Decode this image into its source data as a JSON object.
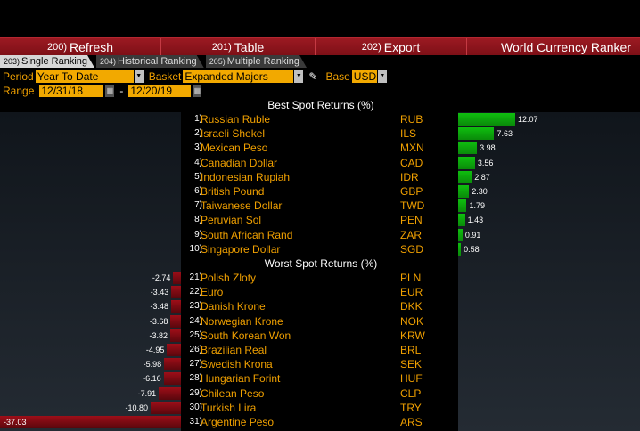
{
  "menu": [
    {
      "num": "200)",
      "label": "Refresh"
    },
    {
      "num": "201)",
      "label": "Table"
    },
    {
      "num": "202)",
      "label": "Export"
    }
  ],
  "app_title": "World Currency Ranker",
  "tabs": [
    {
      "num": "203)",
      "label": "Single Ranking",
      "active": true
    },
    {
      "num": "204)",
      "label": "Historical Ranking",
      "active": false
    },
    {
      "num": "205)",
      "label": "Multiple Ranking",
      "active": false
    }
  ],
  "params": {
    "period_label": "Period",
    "period_value": "Year To Date",
    "basket_label": "Basket",
    "basket_value": "Expanded Majors",
    "base_label": "Base",
    "base_value": "USD",
    "range_label": "Range",
    "range_start": "12/31/18",
    "range_sep": "-",
    "range_end": "12/20/19"
  },
  "best_title": "Best Spot Returns (%)",
  "worst_title": "Worst Spot Returns (%)",
  "best": [
    {
      "rank": "1)",
      "name": "Russian Ruble",
      "code": "RUB",
      "value": "12.07"
    },
    {
      "rank": "2)",
      "name": "Israeli Shekel",
      "code": "ILS",
      "value": "7.63"
    },
    {
      "rank": "3)",
      "name": "Mexican Peso",
      "code": "MXN",
      "value": "3.98"
    },
    {
      "rank": "4)",
      "name": "Canadian Dollar",
      "code": "CAD",
      "value": "3.56"
    },
    {
      "rank": "5)",
      "name": "Indonesian Rupiah",
      "code": "IDR",
      "value": "2.87"
    },
    {
      "rank": "6)",
      "name": "British Pound",
      "code": "GBP",
      "value": "2.30"
    },
    {
      "rank": "7)",
      "name": "Taiwanese Dollar",
      "code": "TWD",
      "value": "1.79"
    },
    {
      "rank": "8)",
      "name": "Peruvian Sol",
      "code": "PEN",
      "value": "1.43"
    },
    {
      "rank": "9)",
      "name": "South African Rand",
      "code": "ZAR",
      "value": "0.91"
    },
    {
      "rank": "10)",
      "name": "Singapore Dollar",
      "code": "SGD",
      "value": "0.58"
    }
  ],
  "worst": [
    {
      "rank": "21)",
      "name": "Polish Zloty",
      "code": "PLN",
      "value": "-2.74"
    },
    {
      "rank": "22)",
      "name": "Euro",
      "code": "EUR",
      "value": "-3.43"
    },
    {
      "rank": "23)",
      "name": "Danish Krone",
      "code": "DKK",
      "value": "-3.48"
    },
    {
      "rank": "24)",
      "name": "Norwegian Krone",
      "code": "NOK",
      "value": "-3.68"
    },
    {
      "rank": "25)",
      "name": "South Korean Won",
      "code": "KRW",
      "value": "-3.82"
    },
    {
      "rank": "26)",
      "name": "Brazilian Real",
      "code": "BRL",
      "value": "-4.95"
    },
    {
      "rank": "27)",
      "name": "Swedish Krona",
      "code": "SEK",
      "value": "-5.98"
    },
    {
      "rank": "28)",
      "name": "Hungarian Forint",
      "code": "HUF",
      "value": "-6.16"
    },
    {
      "rank": "29)",
      "name": "Chilean Peso",
      "code": "CLP",
      "value": "-7.91"
    },
    {
      "rank": "30)",
      "name": "Turkish Lira",
      "code": "TRY",
      "value": "-10.80"
    },
    {
      "rank": "31)",
      "name": "Argentine Peso",
      "code": "ARS",
      "value": "-37.03"
    }
  ],
  "colors": {
    "menu_bar": "#8b141c",
    "label_amber": "#f0a000",
    "field_amber": "#f2a900",
    "positive_bar": "#0fbf0f",
    "negative_bar": "#8b0e17"
  }
}
